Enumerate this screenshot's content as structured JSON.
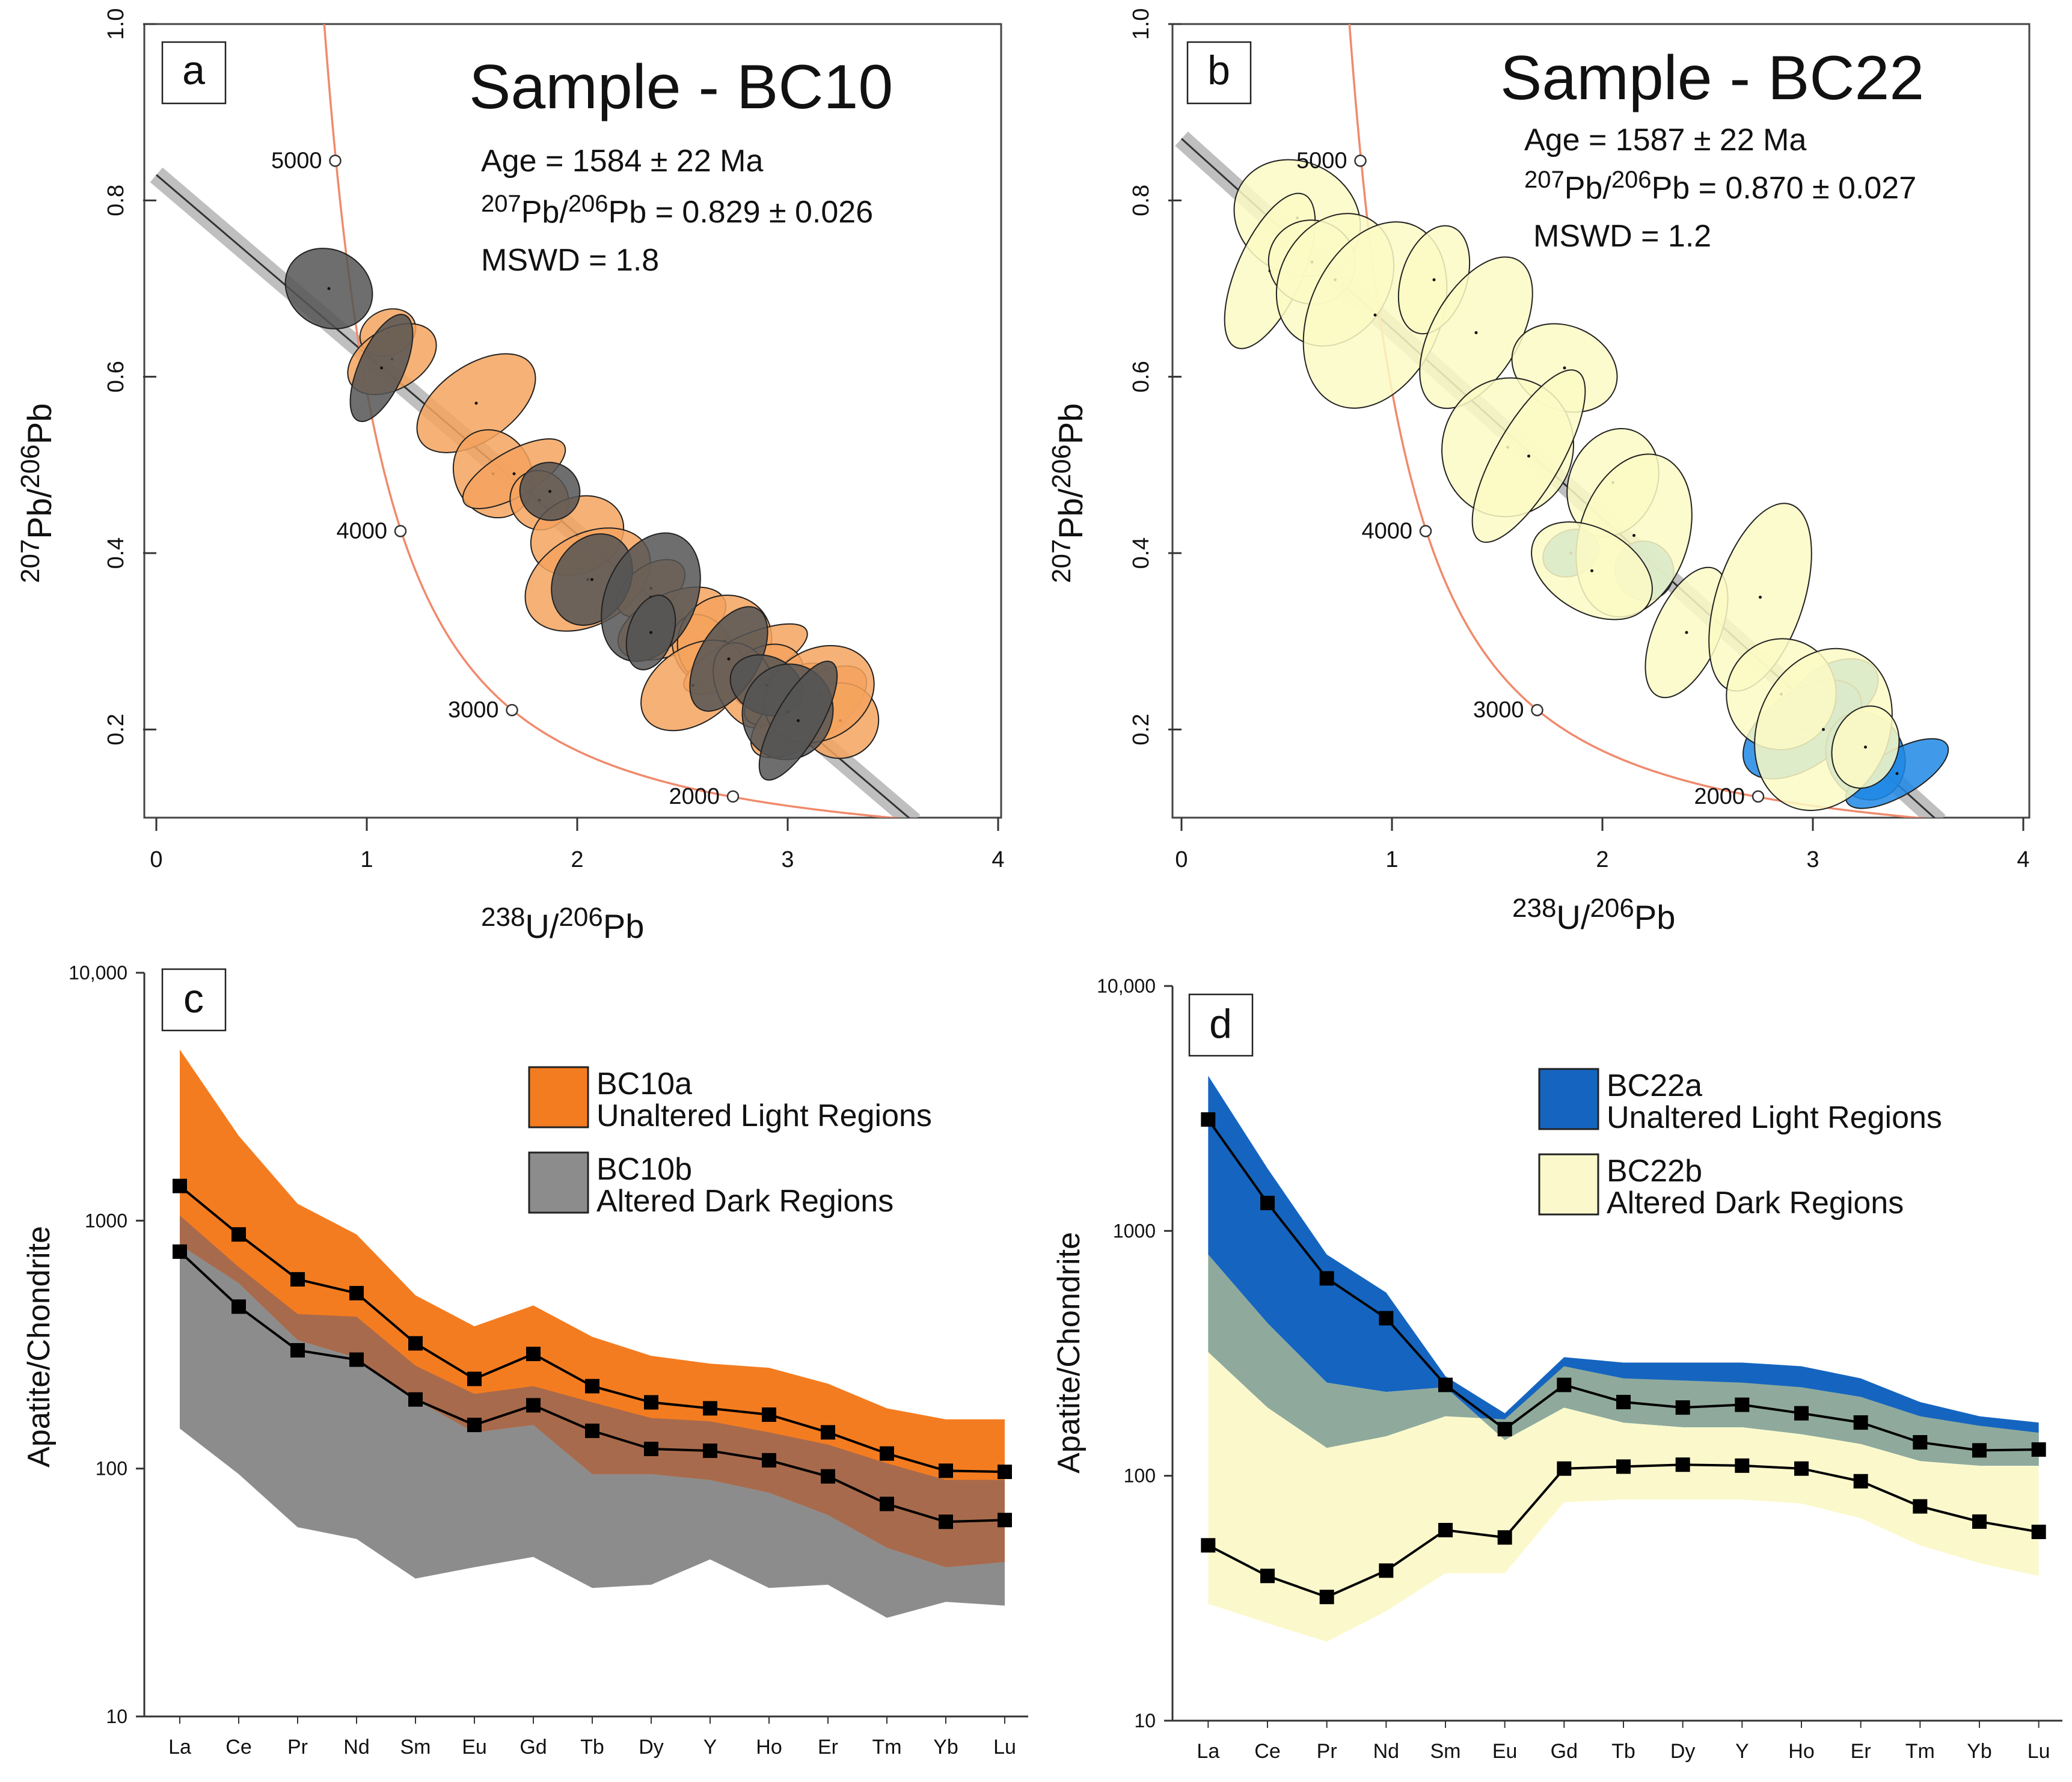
{
  "chart_data": [
    {
      "type": "scatter",
      "panel": "a",
      "title": "Sample - BC10",
      "annotations": [
        "Age = 1584 ± 22 Ma",
        "207Pb/206Pb = 0.829 ± 0.026",
        "MSWD = 1.8"
      ],
      "ann_parts": {
        "age": "Age = 1584 ± 22 Ma",
        "iso_a": "207",
        "iso_b": "Pb/",
        "iso_c": "206",
        "iso_d": "Pb",
        "iso_value": " = 0.829 ± 0.026",
        "mswd": "MSWD = 1.8"
      },
      "xlabel": "238U/206Pb",
      "ylabel": "207Pb/206Pb",
      "xlim": [
        0,
        4
      ],
      "ylim": [
        0.1,
        1.0
      ],
      "x_ticks": [
        "0",
        "1",
        "2",
        "3",
        "4"
      ],
      "y_ticks": [
        "0.2",
        "0.4",
        "0.6",
        "0.8",
        "1.0"
      ],
      "concordia_labels": [
        {
          "age": "5000",
          "x": 0.85,
          "y": 0.845
        },
        {
          "age": "4000",
          "x": 1.16,
          "y": 0.425
        },
        {
          "age": "3000",
          "x": 1.69,
          "y": 0.222
        },
        {
          "age": "2000",
          "x": 2.74,
          "y": 0.124
        }
      ],
      "regression": {
        "intercept": 0.829,
        "x_end": 3.6,
        "y_end": 0.095
      },
      "series": [
        {
          "name": "BC10a",
          "color": "#f4a35e",
          "points": [
            [
              1.1,
              0.65
            ],
            [
              1.12,
              0.62
            ],
            [
              1.52,
              0.57
            ],
            [
              1.6,
              0.49
            ],
            [
              1.7,
              0.49
            ],
            [
              1.82,
              0.46
            ],
            [
              2.0,
              0.42
            ],
            [
              2.05,
              0.37
            ],
            [
              2.35,
              0.36
            ],
            [
              2.45,
              0.32
            ],
            [
              2.6,
              0.29
            ],
            [
              2.7,
              0.3
            ],
            [
              2.8,
              0.28
            ],
            [
              2.9,
              0.26
            ],
            [
              2.55,
              0.25
            ],
            [
              2.8,
              0.25
            ],
            [
              3.0,
              0.24
            ],
            [
              3.1,
              0.22
            ],
            [
              3.25,
              0.21
            ],
            [
              3.15,
              0.24
            ]
          ]
        },
        {
          "name": "BC10b",
          "color": "#555555",
          "points": [
            [
              0.82,
              0.7
            ],
            [
              1.07,
              0.61
            ],
            [
              1.87,
              0.47
            ],
            [
              2.07,
              0.37
            ],
            [
              2.35,
              0.35
            ],
            [
              2.35,
              0.31
            ],
            [
              2.72,
              0.28
            ],
            [
              2.9,
              0.25
            ],
            [
              3.0,
              0.22
            ],
            [
              3.05,
              0.21
            ]
          ]
        }
      ]
    },
    {
      "type": "scatter",
      "panel": "b",
      "title": "Sample - BC22",
      "annotations": [
        "Age = 1587 ± 22 Ma",
        "207Pb/206Pb = 0.870 ± 0.027",
        "MSWD = 1.2"
      ],
      "ann_parts": {
        "age": "Age = 1587 ± 22 Ma",
        "iso_a": "207",
        "iso_b": "Pb/",
        "iso_c": "206",
        "iso_d": "Pb",
        "iso_value": " = 0.870 ± 0.027",
        "mswd": "MSWD = 1.2"
      },
      "xlabel": "238U/206Pb",
      "ylabel": "207Pb/206Pb",
      "xlim": [
        0,
        4
      ],
      "ylim": [
        0.1,
        1.0
      ],
      "x_ticks": [
        "0",
        "1",
        "2",
        "3",
        "4"
      ],
      "y_ticks": [
        "0.2",
        "0.4",
        "0.6",
        "0.8",
        "1.0"
      ],
      "concordia_labels": [
        {
          "age": "5000",
          "x": 0.85,
          "y": 0.845
        },
        {
          "age": "4000",
          "x": 1.16,
          "y": 0.425
        },
        {
          "age": "3000",
          "x": 1.69,
          "y": 0.222
        },
        {
          "age": "2000",
          "x": 2.74,
          "y": 0.124
        }
      ],
      "regression": {
        "intercept": 0.87,
        "x_end": 3.6,
        "y_end": 0.095
      },
      "series": [
        {
          "name": "BC22a",
          "color": "#1e88e5",
          "points": [
            [
              1.85,
              0.4
            ],
            [
              3.1,
              0.24
            ],
            [
              2.95,
              0.2
            ],
            [
              3.25,
              0.17
            ],
            [
              3.4,
              0.15
            ],
            [
              2.2,
              0.38
            ]
          ]
        },
        {
          "name": "BC22b",
          "color": "#fbfac4",
          "points": [
            [
              0.55,
              0.78
            ],
            [
              0.42,
              0.72
            ],
            [
              0.62,
              0.73
            ],
            [
              0.73,
              0.71
            ],
            [
              0.92,
              0.67
            ],
            [
              1.2,
              0.71
            ],
            [
              1.4,
              0.65
            ],
            [
              1.82,
              0.61
            ],
            [
              1.55,
              0.52
            ],
            [
              1.65,
              0.51
            ],
            [
              2.05,
              0.48
            ],
            [
              2.15,
              0.42
            ],
            [
              1.95,
              0.38
            ],
            [
              2.4,
              0.31
            ],
            [
              2.75,
              0.35
            ],
            [
              2.85,
              0.24
            ],
            [
              3.05,
              0.2
            ],
            [
              3.25,
              0.18
            ]
          ]
        }
      ]
    },
    {
      "type": "area",
      "panel": "c",
      "title": "",
      "xlabel": "",
      "ylabel": "Apatite/Chondrite",
      "y_scale": "log",
      "ylim": [
        10,
        10000
      ],
      "y_ticks": [
        "10",
        "100",
        "1000",
        "10,000"
      ],
      "categories": [
        "La",
        "Ce",
        "Pr",
        "Nd",
        "Sm",
        "Eu",
        "Gd",
        "Tb",
        "Dy",
        "Y",
        "Ho",
        "Er",
        "Tm",
        "Yb",
        "Lu"
      ],
      "legend": [
        {
          "name": "BC10a",
          "desc": "Unaltered Light Regions",
          "color": "#f47c20"
        },
        {
          "name": "BC10b",
          "desc": "Altered Dark Regions",
          "color": "#8c8c8c"
        }
      ],
      "overlap_color": "#a86a4c",
      "series": [
        {
          "name": "BC10a",
          "upper": [
            4900,
            2200,
            1170,
            880,
            500,
            375,
            455,
            340,
            285,
            265,
            255,
            220,
            175,
            158,
            158
          ],
          "lower": [
            800,
            560,
            330,
            280,
            190,
            140,
            150,
            95,
            95,
            90,
            80,
            65,
            48,
            40,
            42
          ],
          "median": [
            1380,
            880,
            580,
            510,
            320,
            230,
            290,
            215,
            185,
            175,
            165,
            140,
            115,
            98,
            97
          ]
        },
        {
          "name": "BC10b",
          "upper": [
            1050,
            650,
            420,
            410,
            260,
            200,
            215,
            185,
            160,
            155,
            140,
            125,
            105,
            90,
            90
          ],
          "lower": [
            145,
            95,
            58,
            52,
            36,
            40,
            44,
            33,
            34,
            43,
            33,
            34,
            25,
            29,
            28
          ],
          "median": [
            750,
            450,
            300,
            275,
            190,
            150,
            180,
            142,
            120,
            118,
            108,
            93,
            72,
            61,
            62
          ]
        }
      ]
    },
    {
      "type": "area",
      "panel": "d",
      "title": "",
      "xlabel": "",
      "ylabel": "Apatite/Chondrite",
      "y_scale": "log",
      "ylim": [
        10,
        10000
      ],
      "y_ticks": [
        "10",
        "100",
        "1000",
        "10,000"
      ],
      "categories": [
        "La",
        "Ce",
        "Pr",
        "Nd",
        "Sm",
        "Eu",
        "Gd",
        "Tb",
        "Dy",
        "Y",
        "Ho",
        "Er",
        "Tm",
        "Yb",
        "Lu"
      ],
      "legend": [
        {
          "name": "BC22a",
          "desc": "Unaltered Light Regions",
          "color": "#1565c0"
        },
        {
          "name": "BC22b",
          "desc": "Altered Dark Regions",
          "color": "#fbf9cc"
        }
      ],
      "overlap_color": "#8faa9c",
      "series": [
        {
          "name": "BC22a",
          "upper": [
            4300,
            1800,
            800,
            560,
            255,
            180,
            305,
            290,
            290,
            290,
            280,
            250,
            200,
            175,
            165
          ],
          "lower": [
            800,
            420,
            240,
            220,
            230,
            140,
            190,
            165,
            158,
            158,
            148,
            135,
            115,
            110,
            110
          ],
          "median": [
            2850,
            1300,
            640,
            440,
            235,
            155,
            235,
            200,
            190,
            195,
            180,
            165,
            137,
            127,
            128
          ]
        },
        {
          "name": "BC22b",
          "upper": [
            320,
            190,
            130,
            145,
            175,
            170,
            280,
            250,
            245,
            240,
            230,
            210,
            175,
            160,
            150
          ],
          "lower": [
            30,
            25,
            21,
            28,
            40,
            40,
            78,
            80,
            80,
            80,
            77,
            67,
            52,
            44,
            39
          ],
          "median": [
            52,
            39,
            32,
            41,
            60,
            56,
            107,
            109,
            111,
            110,
            107,
            95,
            75,
            65,
            59
          ]
        }
      ]
    }
  ],
  "panel_labels": {
    "a": "a",
    "b": "b",
    "c": "c",
    "d": "d"
  },
  "axes": {
    "xlabel_a": "238",
    "xlabel_b": "U/",
    "xlabel_c": "206",
    "xlabel_d": "Pb",
    "ylabel_a": "207",
    "ylabel_b": "Pb/",
    "ylabel_c": "206",
    "ylabel_d": "Pb",
    "ree_ylabel": "Apatite/Chondrite"
  }
}
